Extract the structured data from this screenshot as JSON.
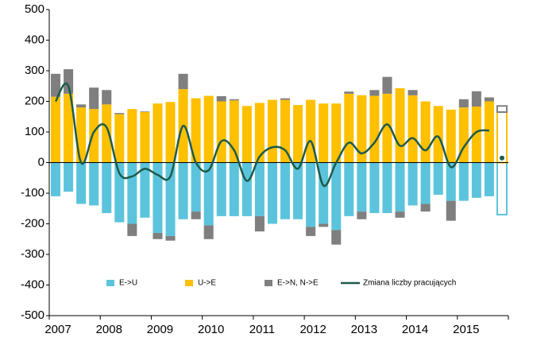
{
  "chart_data": {
    "type": "bar",
    "categories": [
      "2007",
      null,
      null,
      null,
      "2008",
      null,
      null,
      null,
      "2009",
      null,
      null,
      null,
      "2010",
      null,
      null,
      null,
      "2011",
      null,
      null,
      null,
      "2012",
      null,
      null,
      null,
      "2013",
      null,
      null,
      null,
      "2014",
      null,
      null,
      null,
      "2015",
      null,
      null,
      null
    ],
    "series": [
      {
        "name": "E->U",
        "color": "#5bc4dc",
        "values": [
          -110,
          -95,
          -135,
          -140,
          -165,
          -195,
          -200,
          -180,
          -230,
          -240,
          -185,
          -160,
          -205,
          -175,
          -175,
          -175,
          -175,
          -200,
          -185,
          -185,
          -210,
          -200,
          -220,
          -175,
          -160,
          -165,
          -165,
          -160,
          -140,
          -135,
          -105,
          -125,
          -125,
          -115,
          -110,
          -170
        ]
      },
      {
        "name": "U->E",
        "color": "#ffc000",
        "values": [
          215,
          225,
          180,
          175,
          190,
          158,
          175,
          165,
          193,
          198,
          240,
          210,
          218,
          200,
          203,
          185,
          195,
          205,
          205,
          188,
          205,
          193,
          193,
          225,
          220,
          218,
          225,
          243,
          220,
          200,
          185,
          173,
          180,
          183,
          200,
          165
        ]
      },
      {
        "name": "E->N, N->E",
        "color": "#7f7f7f",
        "values": [
          75,
          80,
          10,
          70,
          47,
          4,
          -40,
          2,
          -20,
          -15,
          50,
          -25,
          -45,
          17,
          4,
          0,
          -50,
          0,
          5,
          0,
          -30,
          -10,
          -48,
          7,
          -25,
          19,
          55,
          -20,
          17,
          -25,
          0,
          -65,
          27,
          50,
          13,
          20
        ]
      },
      {
        "name": "Zmiana liczby pracujących",
        "color": "#1d5b4c",
        "type": "line",
        "values": [
          200,
          250,
          0,
          100,
          115,
          -35,
          -45,
          -20,
          -40,
          -45,
          120,
          0,
          -25,
          70,
          40,
          -60,
          20,
          50,
          40,
          -20,
          70,
          -75,
          0,
          65,
          30,
          65,
          125,
          55,
          80,
          40,
          85,
          -15,
          50,
          100,
          105,
          15
        ]
      }
    ],
    "last_as_outline": true,
    "ylim": [
      -500,
      500
    ],
    "yticks": [
      -500,
      -400,
      -300,
      -200,
      -100,
      0,
      100,
      200,
      300,
      400,
      500
    ],
    "grid": false
  }
}
